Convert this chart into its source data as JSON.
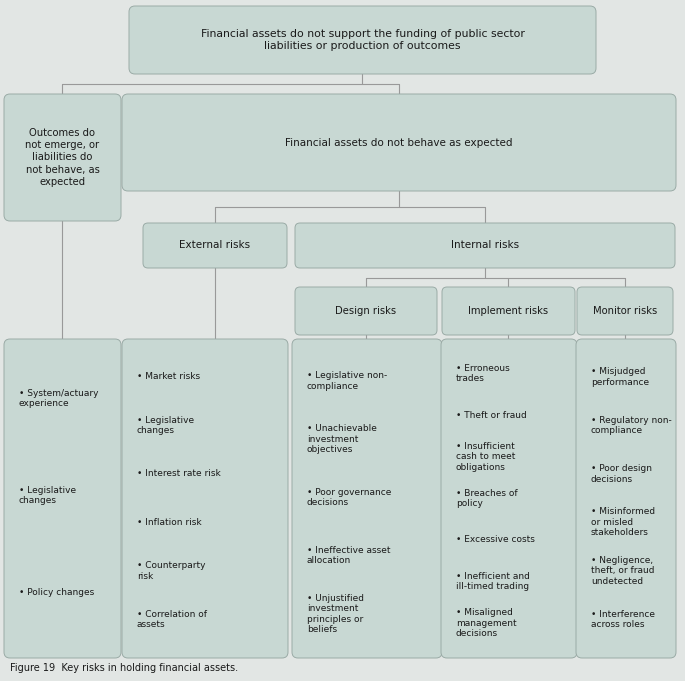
{
  "background_color": "#e2e6e4",
  "box_fill": "#c8d8d3",
  "box_edge": "#9aaba6",
  "text_color": "#1a1a1a",
  "fig_width": 6.85,
  "fig_height": 6.81,
  "title": "Financial assets do not support the funding of public sector\nliabilities or production of outcomes",
  "level1_left": "Outcomes do\nnot emerge, or\nliabilities do\nnot behave, as\nexpected",
  "level1_right": "Financial assets do not behave as expected",
  "level2_left": "External risks",
  "level2_right": "Internal risks",
  "level3": [
    "Design risks",
    "Implement risks",
    "Monitor risks"
  ],
  "leaf_boxes": [
    {
      "items": [
        "System/actuary\nexperience",
        "Legislative\nchanges",
        "Policy changes"
      ]
    },
    {
      "items": [
        "Market risks",
        "Legislative\nchanges",
        "Interest rate risk",
        "Inflation risk",
        "Counterparty\nrisk",
        "Correlation of\nassets"
      ]
    },
    {
      "items": [
        "Legislative non-\ncompliance",
        "Unachievable\ninvestment\nobjectives",
        "Poor governance\ndecisions",
        "Ineffective asset\nallocation",
        "Unjustified\ninvestment\nprinciples or\nbeliefs"
      ]
    },
    {
      "items": [
        "Erroneous\ntrades",
        "Theft or fraud",
        "Insufficient\ncash to meet\nobligations",
        "Breaches of\npolicy",
        "Excessive costs",
        "Inefficient and\nill-timed trading",
        "Misaligned\nmanagement\ndecisions"
      ]
    },
    {
      "items": [
        "Misjudged\nperformance",
        "Regulatory non-\ncompliance",
        "Poor design\ndecisions",
        "Misinformed\nor misled\nstakeholders",
        "Negligence,\ntheft, or fraud\nundetected",
        "Interference\nacross roles"
      ]
    }
  ],
  "caption": "Figure 19  Key risks in holding financial assets."
}
